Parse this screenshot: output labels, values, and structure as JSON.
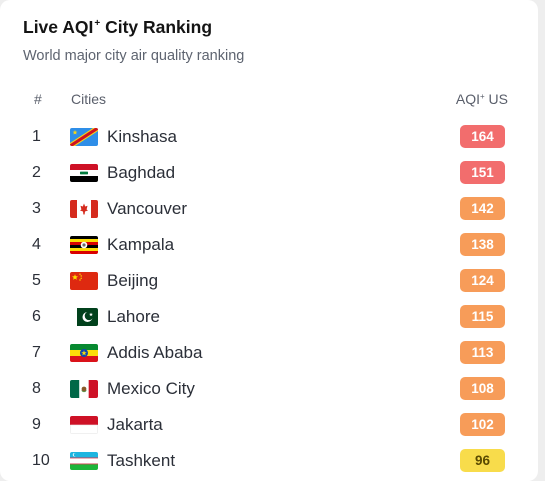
{
  "header": {
    "title": "Live AQI",
    "title_sup": "+",
    "title_suffix": "City Ranking",
    "subtitle": "World major city air quality ranking"
  },
  "columns": {
    "rank": "#",
    "city": "Cities",
    "aqi": "AQI",
    "aqi_sup": "+",
    "aqi_suffix": " US"
  },
  "levels": {
    "unhealthy": "#f26d6d",
    "sensitive": "#f79c59",
    "moderate": "#f8dc4b"
  },
  "rows": [
    {
      "rank": "1",
      "city": "Kinshasa",
      "aqi": "164",
      "level": "unhealthy",
      "flag": "cd-flag-icon"
    },
    {
      "rank": "2",
      "city": "Baghdad",
      "aqi": "151",
      "level": "unhealthy",
      "flag": "iq-flag-icon"
    },
    {
      "rank": "3",
      "city": "Vancouver",
      "aqi": "142",
      "level": "sensitive",
      "flag": "ca-flag-icon"
    },
    {
      "rank": "4",
      "city": "Kampala",
      "aqi": "138",
      "level": "sensitive",
      "flag": "ug-flag-icon"
    },
    {
      "rank": "5",
      "city": "Beijing",
      "aqi": "124",
      "level": "sensitive",
      "flag": "cn-flag-icon"
    },
    {
      "rank": "6",
      "city": "Lahore",
      "aqi": "115",
      "level": "sensitive",
      "flag": "pk-flag-icon"
    },
    {
      "rank": "7",
      "city": "Addis Ababa",
      "aqi": "113",
      "level": "sensitive",
      "flag": "et-flag-icon"
    },
    {
      "rank": "8",
      "city": "Mexico City",
      "aqi": "108",
      "level": "sensitive",
      "flag": "mx-flag-icon"
    },
    {
      "rank": "9",
      "city": "Jakarta",
      "aqi": "102",
      "level": "sensitive",
      "flag": "id-flag-icon"
    },
    {
      "rank": "10",
      "city": "Tashkent",
      "aqi": "96",
      "level": "moderate",
      "flag": "uz-flag-icon"
    }
  ]
}
